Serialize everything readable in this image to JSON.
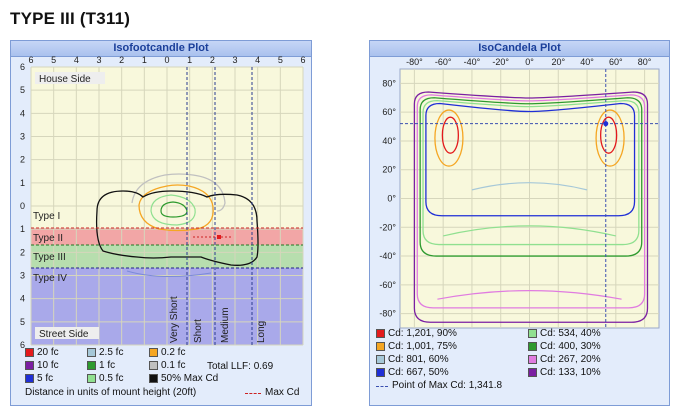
{
  "title": "TYPE III (T311)",
  "chart_data": [
    {
      "type": "contour",
      "title": "Isofootcandle Plot",
      "x_ticks": [
        "6",
        "5",
        "4",
        "3",
        "2",
        "1",
        "0",
        "1",
        "2",
        "3",
        "4",
        "5",
        "6"
      ],
      "y_ticks": [
        "6",
        "5",
        "4",
        "3",
        "2",
        "1",
        "0",
        "1",
        "2",
        "3",
        "4",
        "5",
        "6"
      ],
      "region_labels": {
        "top": "House Side",
        "bottom": "Street Side"
      },
      "zones": [
        "Type I",
        "Type II",
        "Type III",
        "Type IV"
      ],
      "distance_labels": [
        "Very Short",
        "Short",
        "Medium",
        "Long"
      ],
      "legend": [
        {
          "label": "20 fc",
          "color": "#e31a1c"
        },
        {
          "label": "2.5 fc",
          "color": "#a6c8d8"
        },
        {
          "label": "0.2 fc",
          "color": "#f5a623"
        },
        {
          "label": "10 fc",
          "color": "#7b1fa2"
        },
        {
          "label": "1 fc",
          "color": "#2e9a2e"
        },
        {
          "label": "0.1 fc",
          "color": "#c0c0c0"
        },
        {
          "label": "5 fc",
          "color": "#1f2fd6"
        },
        {
          "label": "0.5 fc",
          "color": "#90e090"
        },
        {
          "label": "50% Max Cd",
          "color": "#111111"
        }
      ],
      "total_llf": "Total LLF: 0.69",
      "footer_note": "Distance in units of mount height (20ft)",
      "max_cd_label": "Max Cd"
    },
    {
      "type": "contour",
      "title": "IsoCandela Plot",
      "x_ticks": [
        "-80°",
        "-60°",
        "-40°",
        "-20°",
        "0°",
        "20°",
        "40°",
        "60°",
        "80°"
      ],
      "y_ticks": [
        "80°",
        "60°",
        "40°",
        "20°",
        "0°",
        "-20°",
        "-40°",
        "-60°",
        "-80°"
      ],
      "xlim": [
        -90,
        90
      ],
      "ylim": [
        -90,
        90
      ],
      "legend": [
        {
          "label": "Cd: 1,201, 90%",
          "color": "#e31a1c"
        },
        {
          "label": "Cd: 534, 40%",
          "color": "#90e090"
        },
        {
          "label": "Cd: 1,001, 75%",
          "color": "#f5a623"
        },
        {
          "label": "Cd: 400, 30%",
          "color": "#2e9a2e"
        },
        {
          "label": "Cd: 801, 60%",
          "color": "#a6c8d8"
        },
        {
          "label": "Cd: 267, 20%",
          "color": "#e07be0"
        },
        {
          "label": "Cd: 667, 50%",
          "color": "#1f2fd6"
        },
        {
          "label": "Cd: 133, 10%",
          "color": "#7b1fa2"
        }
      ],
      "max_point_label": "Point of Max Cd: 1,341.8",
      "max_point": {
        "x": 53,
        "y": 52
      }
    }
  ]
}
